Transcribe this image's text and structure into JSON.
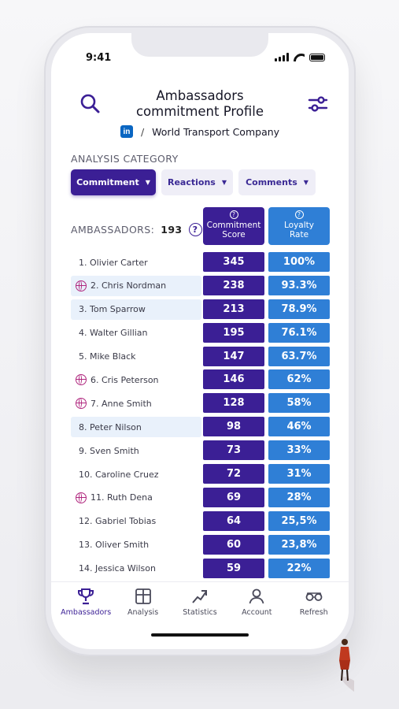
{
  "status": {
    "time": "9:41"
  },
  "header": {
    "title_line1": "Ambassadors",
    "title_line2": "commitment Profile",
    "company_badge": "in",
    "company_separator": "/",
    "company": "World Transport Company"
  },
  "analysis": {
    "label": "ANALYSIS CATEGORY",
    "tabs": [
      {
        "label": "Commitment",
        "active": true
      },
      {
        "label": "Reactions",
        "active": false
      },
      {
        "label": "Comments",
        "active": false
      }
    ]
  },
  "table": {
    "ambassadors_label": "AMBASSADORS:",
    "ambassadors_count": "193",
    "help_symbol": "?",
    "col_score_line1": "Commitment",
    "col_score_line2": "Score",
    "col_rate_line1": "Loyalty",
    "col_rate_line2": "Rate",
    "rows": [
      {
        "name": "1. Olivier Carter",
        "score": "345",
        "rate": "100%",
        "icon": false,
        "highlight": false
      },
      {
        "name": "2. Chris Nordman",
        "score": "238",
        "rate": "93.3%",
        "icon": true,
        "highlight": true
      },
      {
        "name": "3. Tom Sparrow",
        "score": "213",
        "rate": "78.9%",
        "icon": false,
        "highlight": true
      },
      {
        "name": "4. Walter Gillian",
        "score": "195",
        "rate": "76.1%",
        "icon": false,
        "highlight": false
      },
      {
        "name": "5. Mike Black",
        "score": "147",
        "rate": "63.7%",
        "icon": false,
        "highlight": false
      },
      {
        "name": "6. Cris Peterson",
        "score": "146",
        "rate": "62%",
        "icon": true,
        "highlight": false
      },
      {
        "name": "7. Anne Smith",
        "score": "128",
        "rate": "58%",
        "icon": true,
        "highlight": false
      },
      {
        "name": "8. Peter Nilson",
        "score": "98",
        "rate": "46%",
        "icon": false,
        "highlight": true
      },
      {
        "name": "9. Sven Smith",
        "score": "73",
        "rate": "33%",
        "icon": false,
        "highlight": false
      },
      {
        "name": "10. Caroline Cruez",
        "score": "72",
        "rate": "31%",
        "icon": false,
        "highlight": false
      },
      {
        "name": "11. Ruth Dena",
        "score": "69",
        "rate": "28%",
        "icon": true,
        "highlight": false
      },
      {
        "name": "12. Gabriel Tobias",
        "score": "64",
        "rate": "25,5%",
        "icon": false,
        "highlight": false
      },
      {
        "name": "13. Oliver Smith",
        "score": "60",
        "rate": "23,8%",
        "icon": false,
        "highlight": false
      },
      {
        "name": "14. Jessica Wilson",
        "score": "59",
        "rate": "22%",
        "icon": false,
        "highlight": false
      }
    ]
  },
  "nav": [
    {
      "label": "Ambassadors",
      "icon": "trophy-icon",
      "active": true
    },
    {
      "label": "Analysis",
      "icon": "grid-icon",
      "active": false
    },
    {
      "label": "Statistics",
      "icon": "trend-icon",
      "active": false
    },
    {
      "label": "Account",
      "icon": "user-icon",
      "active": false
    },
    {
      "label": "Refresh",
      "icon": "glasses-icon",
      "active": false
    }
  ],
  "colors": {
    "primary": "#3b1f95",
    "secondary": "#2f7fd6",
    "highlight": "#e9f1fb",
    "icon_magenta": "#b0287f"
  }
}
